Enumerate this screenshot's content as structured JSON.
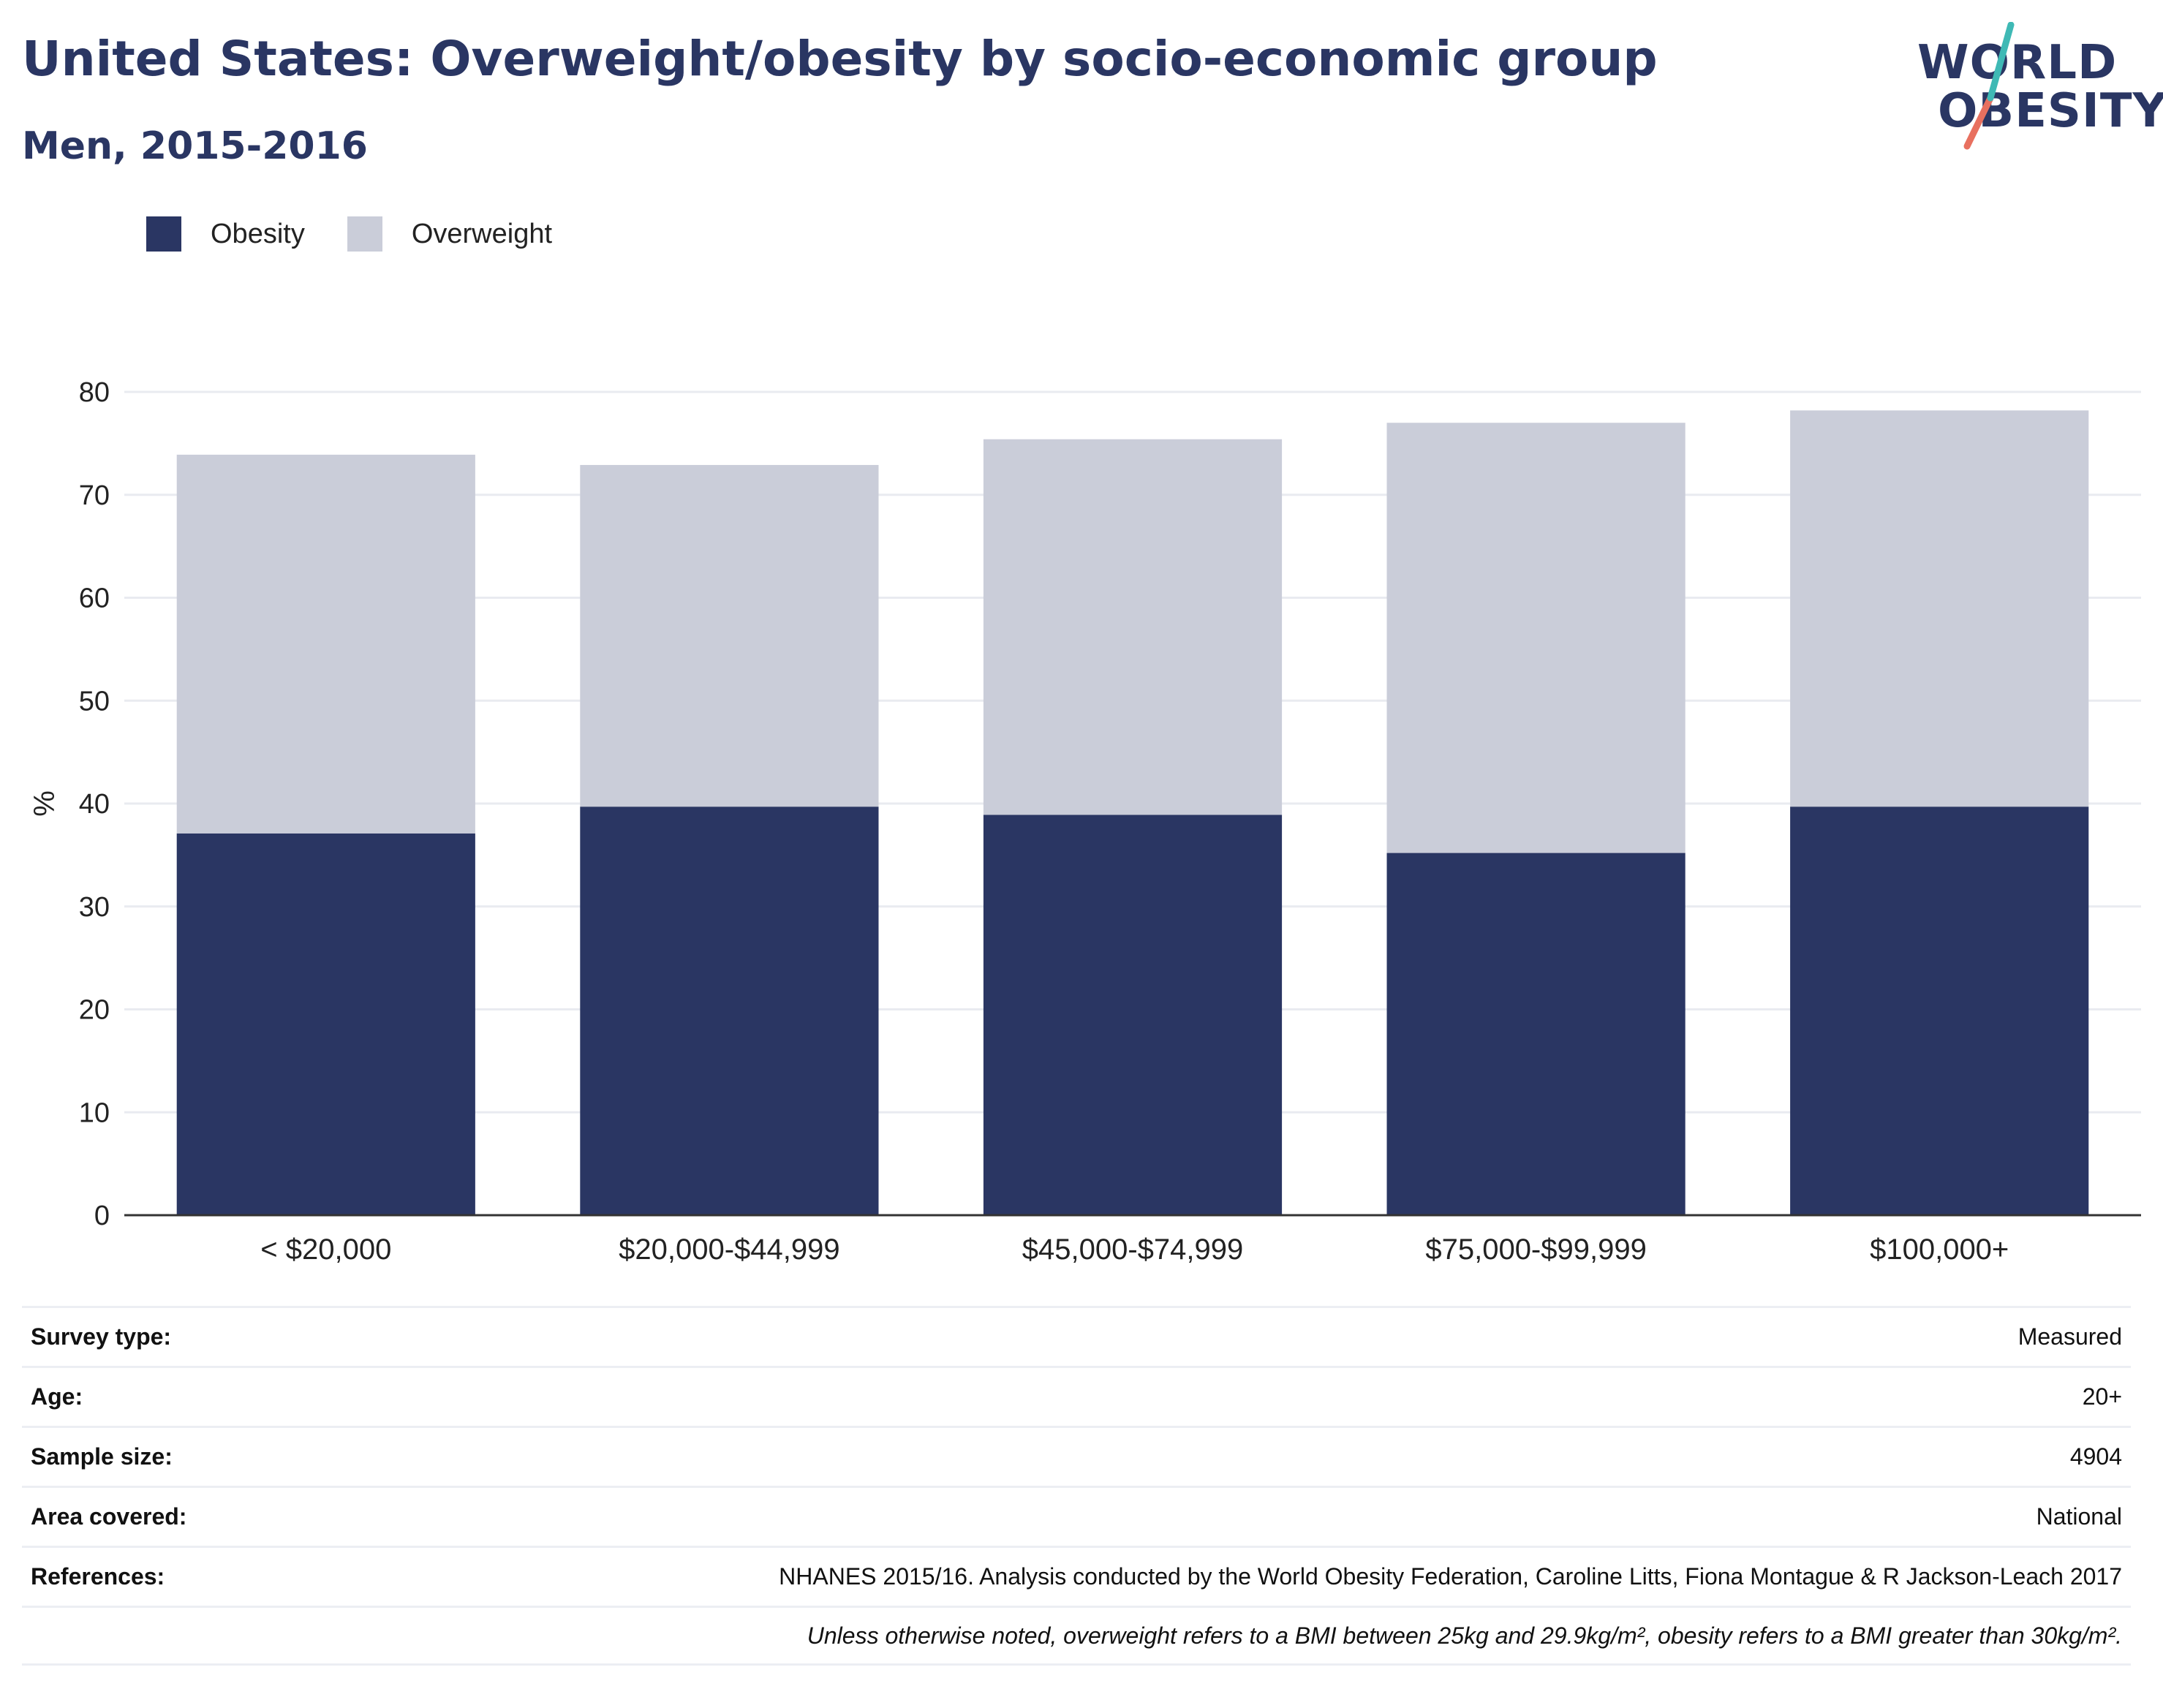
{
  "header": {
    "title": "United States: Overweight/obesity by socio-economic group",
    "subtitle": "Men, 2015-2016"
  },
  "logo": {
    "line1": "WORLD",
    "line2": "OBESITY"
  },
  "colors": {
    "obesity": "#2a3663",
    "overweight": "#cacdd9",
    "grid": "#e9ebf0",
    "axis": "#333333",
    "logo_teal": "#3fb9b5",
    "logo_coral": "#e8705f"
  },
  "chart_data": {
    "type": "bar",
    "stacked": true,
    "categories": [
      "< $20,000",
      "$20,000-$44,999",
      "$45,000-$74,999",
      "$75,000-$99,999",
      "$100,000+"
    ],
    "series": [
      {
        "name": "Obesity",
        "color": "#2a3663",
        "values": [
          37.1,
          39.7,
          38.9,
          35.2,
          39.7
        ]
      },
      {
        "name": "Overweight",
        "color": "#cacdd9",
        "values": [
          36.8,
          33.2,
          36.5,
          41.8,
          38.5
        ]
      }
    ],
    "ylabel": "%",
    "ylim": [
      0,
      80
    ],
    "yticks": [
      0,
      10,
      20,
      30,
      40,
      50,
      60,
      70,
      80
    ],
    "grid": true,
    "legend_position": "top-left"
  },
  "info": {
    "rows": [
      {
        "key": "Survey type:",
        "value": "Measured"
      },
      {
        "key": "Age:",
        "value": "20+"
      },
      {
        "key": "Sample size:",
        "value": "4904"
      },
      {
        "key": "Area covered:",
        "value": "National"
      },
      {
        "key": "References:",
        "value": "NHANES 2015/16. Analysis conducted by the World Obesity Federation, Caroline Litts, Fiona Montague & R Jackson-Leach 2017"
      }
    ],
    "note": "Unless otherwise noted, overweight refers to a BMI between 25kg and 29.9kg/m², obesity refers to a BMI greater than 30kg/m²."
  }
}
